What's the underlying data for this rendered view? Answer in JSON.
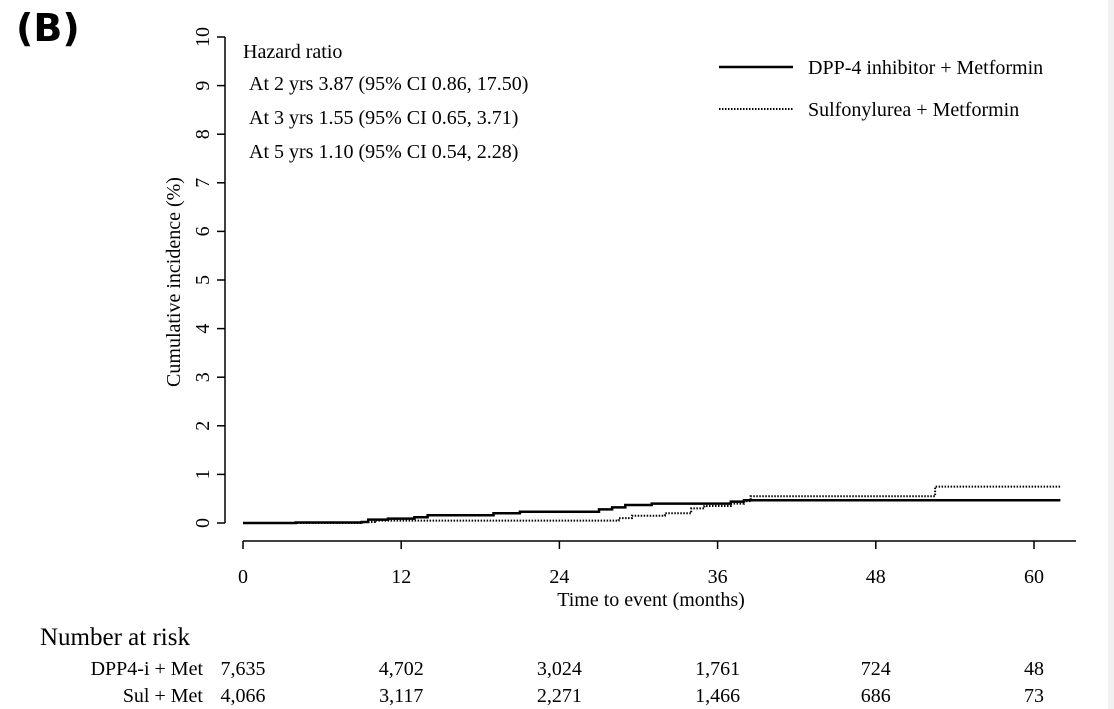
{
  "panel_label": "(B)",
  "chart_data": {
    "type": "line",
    "xlabel": "Time to event (months)",
    "ylabel": "Cumulative incidence (%)",
    "xlim": [
      0,
      62
    ],
    "ylim": [
      0,
      10
    ],
    "x_ticks": [
      0,
      12,
      24,
      36,
      48,
      60
    ],
    "y_ticks": [
      0,
      1,
      2,
      3,
      4,
      5,
      6,
      7,
      8,
      9,
      10
    ],
    "legend_position": "top-right",
    "annotations": {
      "title": "Hazard ratio",
      "lines": [
        "At 2 yrs 3.87 (95% CI 0.86, 17.50)",
        "At 3 yrs 1.55 (95% CI 0.65, 3.71)",
        "At 5 yrs 1.10 (95% CI 0.54, 2.28)"
      ]
    },
    "series": [
      {
        "name": "DPP-4 inhibitor + Metformin",
        "style": "solid",
        "color": "#000000",
        "points": [
          [
            0,
            0
          ],
          [
            4,
            0.01
          ],
          [
            9,
            0.02
          ],
          [
            9.5,
            0.07
          ],
          [
            11,
            0.09
          ],
          [
            13,
            0.12
          ],
          [
            14,
            0.16
          ],
          [
            19,
            0.2
          ],
          [
            21,
            0.23
          ],
          [
            27,
            0.28
          ],
          [
            28,
            0.32
          ],
          [
            29,
            0.37
          ],
          [
            31,
            0.4
          ],
          [
            37,
            0.44
          ],
          [
            38,
            0.47
          ],
          [
            62,
            0.47
          ]
        ]
      },
      {
        "name": "Sulfonylurea + Metformin",
        "style": "dotted",
        "color": "#000000",
        "points": [
          [
            0,
            0
          ],
          [
            9,
            0.02
          ],
          [
            10,
            0.05
          ],
          [
            14,
            0.05
          ],
          [
            28,
            0.05
          ],
          [
            28.5,
            0.1
          ],
          [
            29.5,
            0.15
          ],
          [
            32,
            0.2
          ],
          [
            34,
            0.3
          ],
          [
            35,
            0.35
          ],
          [
            37,
            0.4
          ],
          [
            38,
            0.45
          ],
          [
            38.5,
            0.55
          ],
          [
            52,
            0.55
          ],
          [
            52.5,
            0.75
          ],
          [
            62,
            0.75
          ]
        ]
      }
    ],
    "risk_table": {
      "title": "Number at risk",
      "times": [
        0,
        12,
        24,
        36,
        48,
        60
      ],
      "rows": [
        {
          "label": "DPP4-i + Met",
          "values": [
            "7,635",
            "4,702",
            "3,024",
            "1,761",
            "724",
            "48"
          ]
        },
        {
          "label": "Sul + Met",
          "values": [
            "4,066",
            "3,117",
            "2,271",
            "1,466",
            "686",
            "73"
          ]
        }
      ]
    }
  }
}
